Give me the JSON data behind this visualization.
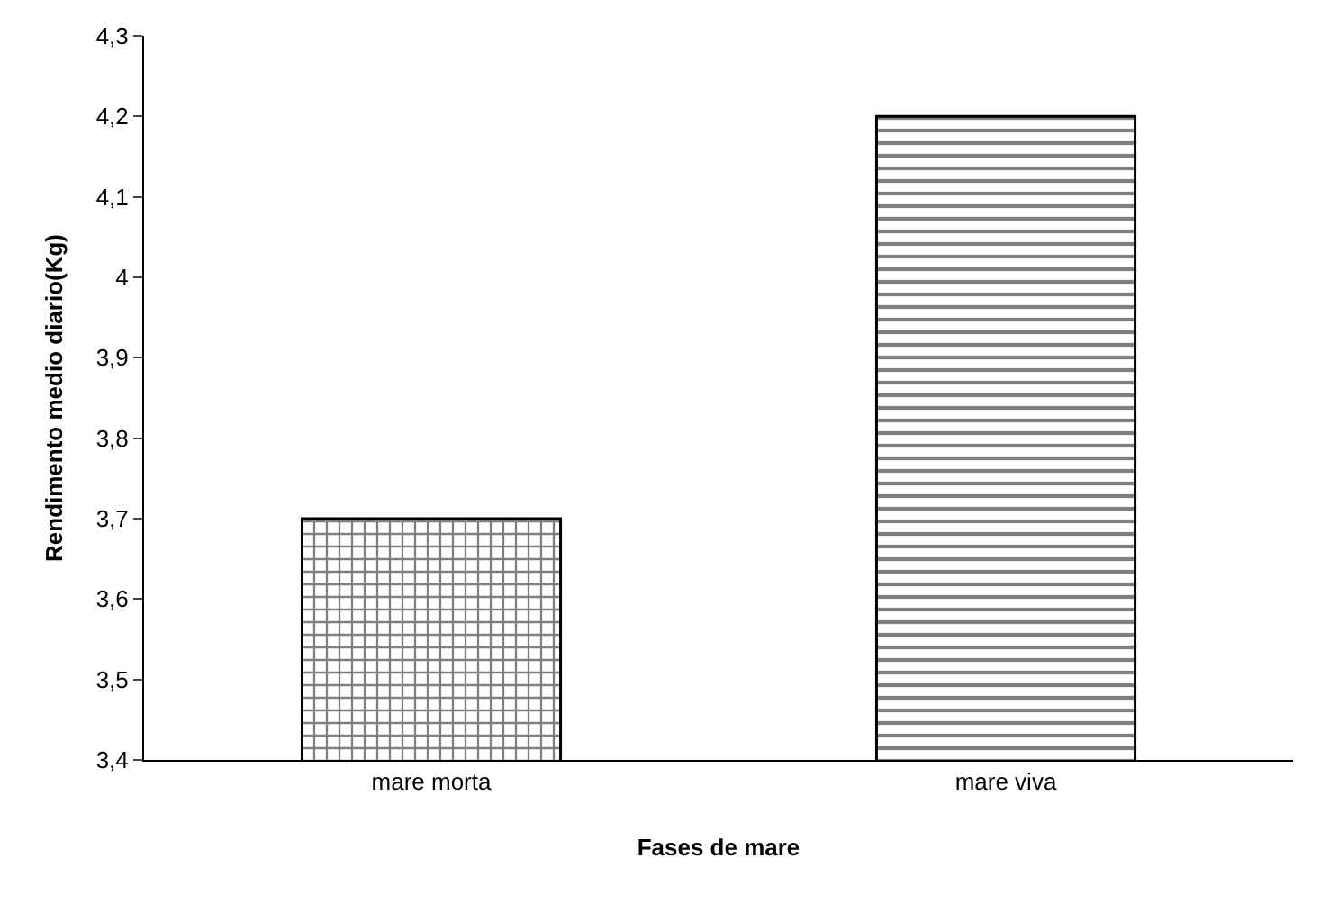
{
  "chart_data": {
    "type": "bar",
    "xlabel": "Fases de mare",
    "ylabel": "Rendimento medio diario(Kg)",
    "categories": [
      "mare morta",
      "mare viva"
    ],
    "values": [
      3.7,
      4.2
    ],
    "colors": [
      "#000000",
      "#000000"
    ],
    "ylim": [
      3.4,
      4.3
    ],
    "yticks": [
      {
        "value": 3.4,
        "label": "3,4"
      },
      {
        "value": 3.5,
        "label": "3,5"
      },
      {
        "value": 3.6,
        "label": "3,6"
      },
      {
        "value": 3.7,
        "label": "3,7"
      },
      {
        "value": 3.8,
        "label": "3,8"
      },
      {
        "value": 3.9,
        "label": "3,9"
      },
      {
        "value": 4.0,
        "label": "4"
      },
      {
        "value": 4.1,
        "label": "4,1"
      },
      {
        "value": 4.2,
        "label": "4,2"
      },
      {
        "value": 4.3,
        "label": "4,3"
      }
    ],
    "legend": false
  }
}
